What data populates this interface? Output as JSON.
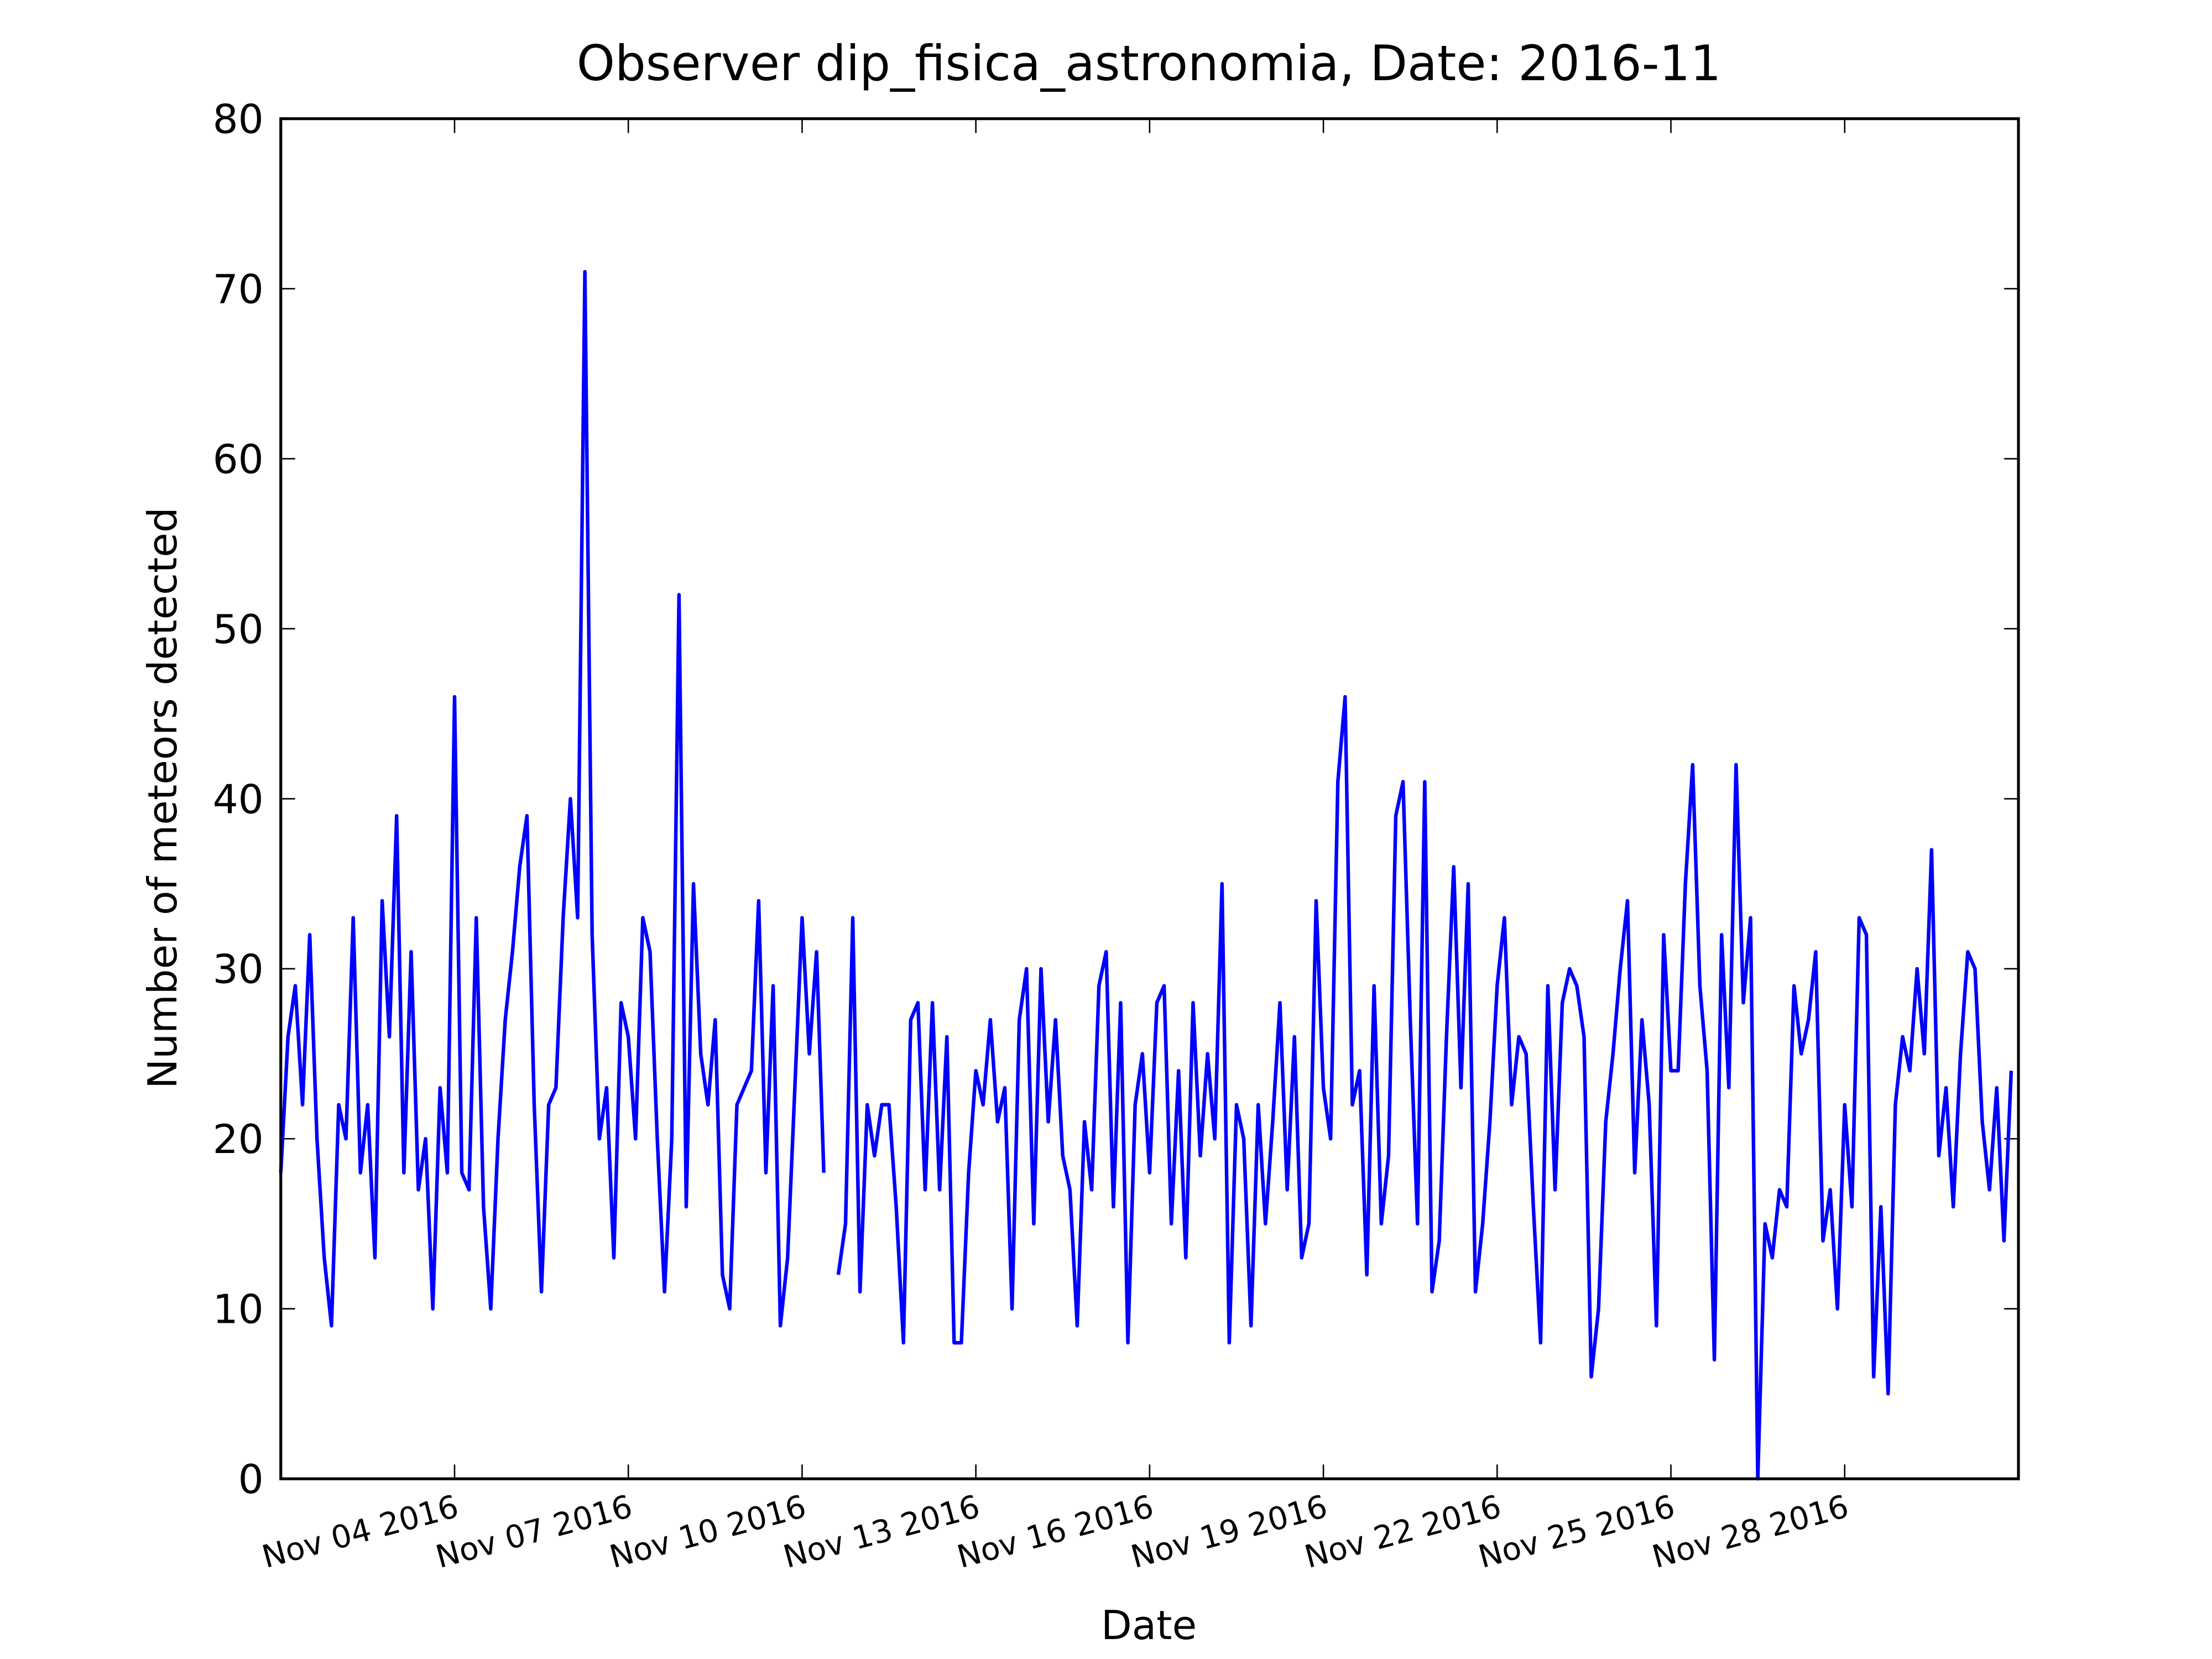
{
  "chart_data": {
    "type": "line",
    "title": "Observer dip_fisica_astronomia, Date: 2016-11",
    "xlabel": "Date",
    "ylabel": "Number of meteors detected",
    "x": [
      1,
      1.125,
      1.25,
      1.375,
      1.5,
      1.625,
      1.75,
      1.875,
      2,
      2.125,
      2.25,
      2.375,
      2.5,
      2.625,
      2.75,
      2.875,
      3,
      3.125,
      3.25,
      3.375,
      3.5,
      3.625,
      3.75,
      3.875,
      4,
      4.125,
      4.25,
      4.375,
      4.5,
      4.625,
      4.75,
      4.875,
      5,
      5.125,
      5.25,
      5.375,
      5.5,
      5.625,
      5.75,
      5.875,
      6,
      6.125,
      6.25,
      6.375,
      6.5,
      6.625,
      6.75,
      6.875,
      7,
      7.125,
      7.25,
      7.375,
      7.5,
      7.625,
      7.75,
      7.875,
      8,
      8.125,
      8.25,
      8.375,
      8.5,
      8.625,
      8.75,
      8.875,
      9,
      9.125,
      9.25,
      9.375,
      9.5,
      9.625,
      9.75,
      9.875,
      10,
      10.125,
      10.25,
      10.375,
      10.5,
      10.625,
      10.75,
      10.875,
      11,
      11.125,
      11.25,
      11.375,
      11.5,
      11.625,
      11.75,
      11.875,
      12,
      12.125,
      12.25,
      12.375,
      12.5,
      12.625,
      12.75,
      12.875,
      13,
      13.125,
      13.25,
      13.375,
      13.5,
      13.625,
      13.75,
      13.875,
      14,
      14.125,
      14.25,
      14.375,
      14.5,
      14.625,
      14.75,
      14.875,
      15,
      15.125,
      15.25,
      15.375,
      15.5,
      15.625,
      15.75,
      15.875,
      16,
      16.125,
      16.25,
      16.375,
      16.5,
      16.625,
      16.75,
      16.875,
      17,
      17.125,
      17.25,
      17.375,
      17.5,
      17.625,
      17.75,
      17.875,
      18,
      18.125,
      18.25,
      18.375,
      18.5,
      18.625,
      18.75,
      18.875,
      19,
      19.125,
      19.25,
      19.375,
      19.5,
      19.625,
      19.75,
      19.875,
      20,
      20.125,
      20.25,
      20.375,
      20.5,
      20.625,
      20.75,
      20.875,
      21,
      21.125,
      21.25,
      21.375,
      21.5,
      21.625,
      21.75,
      21.875,
      22,
      22.125,
      22.25,
      22.375,
      22.5,
      22.625,
      22.75,
      22.875,
      23,
      23.125,
      23.25,
      23.375,
      23.5,
      23.625,
      23.75,
      23.875,
      24,
      24.125,
      24.25,
      24.375,
      24.5,
      24.625,
      24.75,
      24.875,
      25,
      25.125,
      25.25,
      25.375,
      25.5,
      25.625,
      25.75,
      25.875,
      26,
      26.125,
      26.25,
      26.375,
      26.5,
      26.625,
      26.75,
      26.875,
      27,
      27.125,
      27.25,
      27.375,
      27.5,
      27.625,
      27.75,
      27.875,
      28,
      28.125,
      28.25,
      28.375,
      28.5,
      28.625,
      28.75,
      28.875,
      29,
      29.125,
      29.25,
      29.375,
      29.5,
      29.625,
      29.75,
      29.875,
      30,
      30.125,
      30.25,
      30.375,
      30.5,
      30.625,
      30.75,
      30.875
    ],
    "series": [
      {
        "color": "#0000ff",
        "values": [
          18,
          26,
          29,
          22,
          32,
          20,
          13,
          9,
          22,
          20,
          33,
          18,
          22,
          13,
          34,
          26,
          39,
          18,
          31,
          17,
          20,
          10,
          23,
          18,
          46,
          18,
          17,
          33,
          16,
          10,
          20,
          27,
          31,
          36,
          39,
          22,
          11,
          22,
          23,
          33,
          40,
          33,
          71,
          32,
          20,
          23,
          13,
          28,
          26,
          20,
          33,
          31,
          20,
          11,
          20,
          52,
          16,
          35,
          25,
          22,
          27,
          12,
          10,
          22,
          23,
          24,
          34,
          18,
          29,
          9,
          13,
          23,
          33,
          25,
          31,
          18,
          null,
          12,
          15,
          33,
          11,
          22,
          19,
          22,
          22,
          16,
          8,
          27,
          28,
          17,
          28,
          17,
          26,
          8,
          8,
          18,
          24,
          22,
          27,
          21,
          23,
          10,
          27,
          30,
          15,
          30,
          21,
          27,
          19,
          17,
          9,
          21,
          17,
          29,
          31,
          16,
          28,
          8,
          22,
          25,
          18,
          28,
          29,
          15,
          24,
          13,
          28,
          19,
          25,
          20,
          35,
          8,
          22,
          20,
          9,
          22,
          15,
          21,
          28,
          17,
          26,
          13,
          15,
          34,
          23,
          20,
          41,
          46,
          22,
          24,
          12,
          29,
          15,
          19,
          39,
          41,
          27,
          15,
          41,
          11,
          14,
          26,
          36,
          23,
          35,
          11,
          15,
          21,
          29,
          33,
          22,
          26,
          25,
          16,
          8,
          29,
          17,
          28,
          30,
          29,
          26,
          6,
          10,
          21,
          25,
          30,
          34,
          18,
          27,
          22,
          9,
          32,
          24,
          24,
          35,
          42,
          29,
          24,
          7,
          32,
          23,
          42,
          28,
          33,
          0,
          15,
          13,
          17,
          16,
          29,
          25,
          27,
          31,
          14,
          17,
          10,
          22,
          16,
          33,
          32,
          6,
          16,
          5,
          22,
          26,
          24,
          30,
          25,
          37,
          19,
          23,
          16,
          25,
          31,
          30,
          21,
          17,
          23,
          14,
          24
        ]
      }
    ],
    "xlim": [
      1,
      31
    ],
    "xticks": [
      {
        "value": 4,
        "label": "Nov 04 2016"
      },
      {
        "value": 7,
        "label": "Nov 07 2016"
      },
      {
        "value": 10,
        "label": "Nov 10 2016"
      },
      {
        "value": 13,
        "label": "Nov 13 2016"
      },
      {
        "value": 16,
        "label": "Nov 16 2016"
      },
      {
        "value": 19,
        "label": "Nov 19 2016"
      },
      {
        "value": 22,
        "label": "Nov 22 2016"
      },
      {
        "value": 25,
        "label": "Nov 25 2016"
      },
      {
        "value": 28,
        "label": "Nov 28 2016"
      }
    ],
    "ylim": [
      0,
      80
    ],
    "yticks": [
      0,
      10,
      20,
      30,
      40,
      50,
      60,
      70,
      80
    ],
    "grid": false
  }
}
